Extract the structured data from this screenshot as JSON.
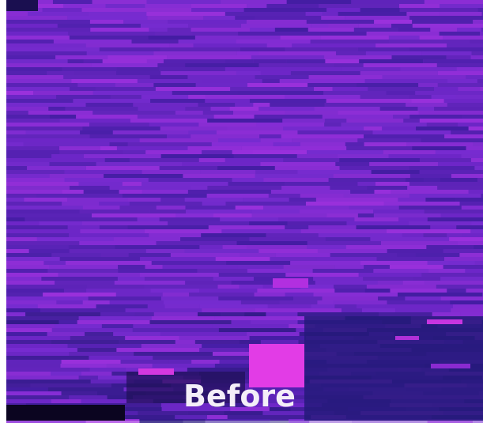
{
  "image": {
    "caption": "Before"
  }
}
